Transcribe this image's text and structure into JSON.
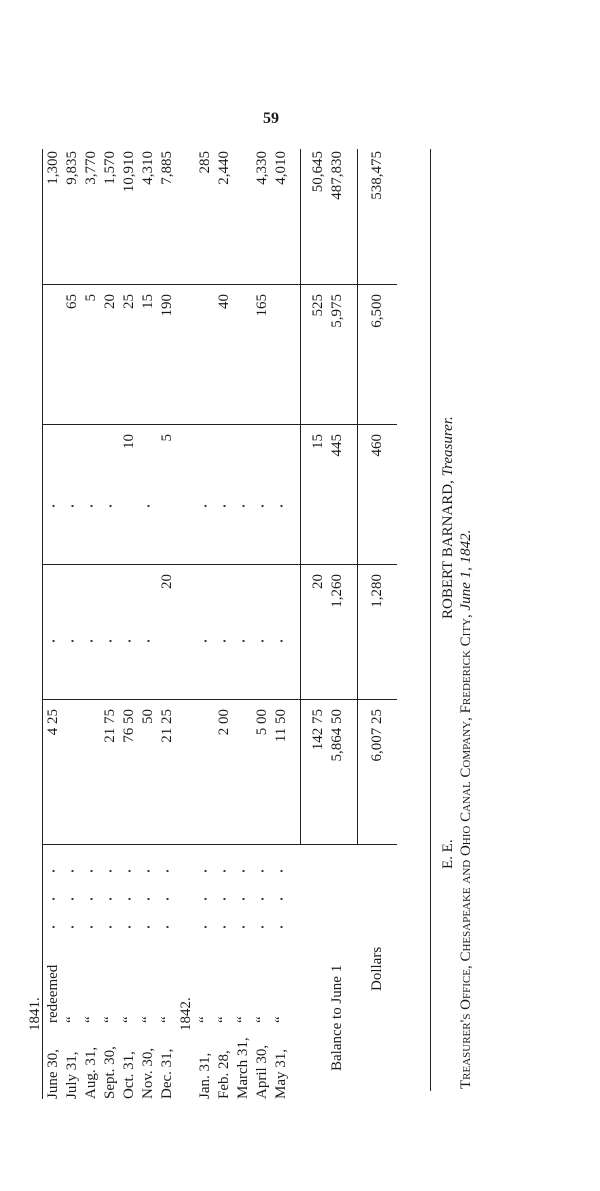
{
  "page_number": "59",
  "table": {
    "year_1841": "1841.",
    "year_1842": "1842.",
    "rows_1841": [
      {
        "date": "June 30,",
        "ditto": "redeemed",
        "cols": [
          "4 25",
          "",
          "",
          "",
          "1,300"
        ]
      },
      {
        "date": "July 31,",
        "ditto": "“",
        "cols": [
          "",
          "",
          "",
          "65",
          "9,835"
        ]
      },
      {
        "date": "Aug. 31,",
        "ditto": "“",
        "cols": [
          "",
          "",
          "",
          "5",
          "3,770"
        ]
      },
      {
        "date": "Sept. 30,",
        "ditto": "“",
        "cols": [
          "21 75",
          "",
          "",
          "20",
          "1,570"
        ]
      },
      {
        "date": "Oct. 31,",
        "ditto": "“",
        "cols": [
          "76 50",
          "",
          "10",
          "25",
          "10,910"
        ]
      },
      {
        "date": "Nov. 30,",
        "ditto": "“",
        "cols": [
          "50",
          "",
          "",
          "15",
          "4,310"
        ]
      },
      {
        "date": "Dec. 31,",
        "ditto": "“",
        "cols": [
          "21 25",
          "20",
          "5",
          "190",
          "7,885"
        ]
      }
    ],
    "rows_1842": [
      {
        "date": "Jan. 31,",
        "ditto": "“",
        "cols": [
          "",
          "",
          "",
          "",
          "285"
        ]
      },
      {
        "date": "Feb. 28,",
        "ditto": "“",
        "cols": [
          "2 00",
          "",
          "",
          "40",
          "2,440"
        ]
      },
      {
        "date": "March 31,",
        "ditto": "“",
        "cols": [
          "",
          "",
          "",
          "",
          ""
        ]
      },
      {
        "date": "April 30,",
        "ditto": "“",
        "cols": [
          "5 00",
          "",
          "",
          "165",
          "4,330"
        ]
      },
      {
        "date": "May 31,",
        "ditto": "“",
        "cols": [
          "11 50",
          "",
          "",
          "",
          "4,010"
        ]
      }
    ],
    "subtotal": {
      "label": "",
      "cols": [
        "142 75",
        "20",
        "15",
        "525",
        "50,645"
      ]
    },
    "balance": {
      "label": "Balance to June 1",
      "cols": [
        "5,864 50",
        "1,260",
        "445",
        "5,975",
        "487,830"
      ]
    },
    "total": {
      "label": "Dollars",
      "cols": [
        "6,007 25",
        "1,280",
        "460",
        "6,500",
        "538,475"
      ]
    }
  },
  "footer": {
    "initials": "E. E.",
    "signature_name": "ROBERT BARNARD,",
    "signature_title": "Treasurer.",
    "office_line": "Treasurer's Office, Chesapeake and Ohio Canal Company, Frederick City,",
    "date_line": "June 1, 1842."
  }
}
